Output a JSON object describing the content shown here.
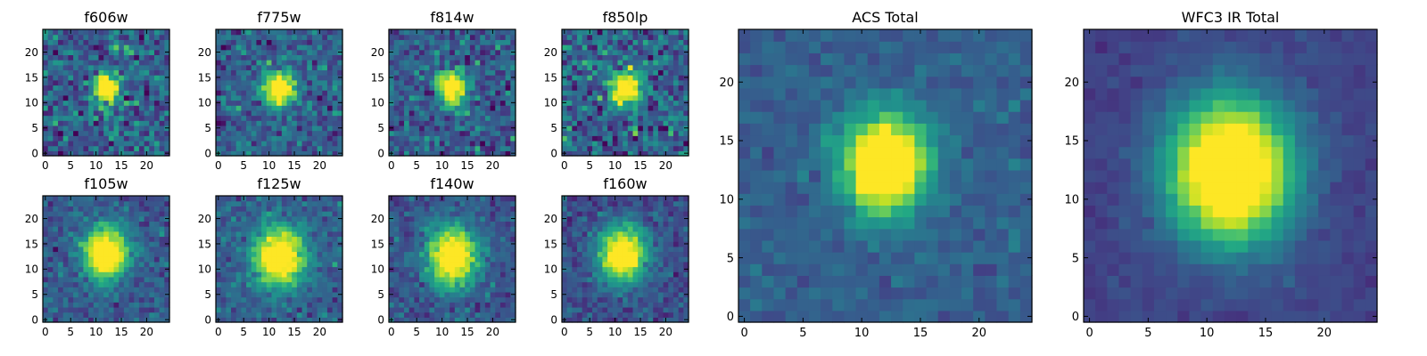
{
  "chart_data": [
    {
      "type": "heatmap",
      "title": "f606w",
      "colormap": "viridis",
      "xlim": [
        0,
        24
      ],
      "ylim": [
        0,
        24
      ],
      "x_ticks": [
        0,
        5,
        10,
        15,
        20
      ],
      "y_ticks": [
        0,
        5,
        10,
        15,
        20
      ],
      "source": {
        "center": [
          12,
          13
        ],
        "sigma": [
          1.7,
          2.1
        ],
        "peak": 1.0
      },
      "noise": 0.38,
      "background": 0.3,
      "seed": 11
    },
    {
      "type": "heatmap",
      "title": "f775w",
      "colormap": "viridis",
      "xlim": [
        0,
        24
      ],
      "ylim": [
        0,
        24
      ],
      "x_ticks": [
        0,
        5,
        10,
        15,
        20
      ],
      "y_ticks": [
        0,
        5,
        10,
        15,
        20
      ],
      "source": {
        "center": [
          12,
          13
        ],
        "sigma": [
          2.0,
          2.3
        ],
        "peak": 1.0
      },
      "noise": 0.32,
      "background": 0.3,
      "seed": 23
    },
    {
      "type": "heatmap",
      "title": "f814w",
      "colormap": "viridis",
      "xlim": [
        0,
        24
      ],
      "ylim": [
        0,
        24
      ],
      "x_ticks": [
        0,
        5,
        10,
        15,
        20
      ],
      "y_ticks": [
        0,
        5,
        10,
        15,
        20
      ],
      "source": {
        "center": [
          12,
          13
        ],
        "sigma": [
          1.9,
          2.3
        ],
        "peak": 1.0
      },
      "noise": 0.34,
      "background": 0.3,
      "seed": 37
    },
    {
      "type": "heatmap",
      "title": "f850lp",
      "colormap": "viridis",
      "xlim": [
        0,
        24
      ],
      "ylim": [
        0,
        24
      ],
      "x_ticks": [
        0,
        5,
        10,
        15,
        20
      ],
      "y_ticks": [
        0,
        5,
        10,
        15,
        20
      ],
      "source": {
        "center": [
          12,
          13
        ],
        "sigma": [
          2.0,
          2.4
        ],
        "peak": 1.0
      },
      "noise": 0.42,
      "background": 0.32,
      "seed": 41
    },
    {
      "type": "heatmap",
      "title": "f105w",
      "colormap": "viridis",
      "xlim": [
        0,
        24
      ],
      "ylim": [
        0,
        24
      ],
      "x_ticks": [
        0,
        5,
        10,
        15,
        20
      ],
      "y_ticks": [
        0,
        5,
        10,
        15,
        20
      ],
      "source": {
        "center": [
          12,
          13
        ],
        "sigma": [
          3.0,
          3.6
        ],
        "peak": 1.0
      },
      "noise": 0.22,
      "background": 0.28,
      "seed": 53
    },
    {
      "type": "heatmap",
      "title": "f125w",
      "colormap": "viridis",
      "xlim": [
        0,
        24
      ],
      "ylim": [
        0,
        24
      ],
      "x_ticks": [
        0,
        5,
        10,
        15,
        20
      ],
      "y_ticks": [
        0,
        5,
        10,
        15,
        20
      ],
      "source": {
        "center": [
          12,
          12.5
        ],
        "sigma": [
          3.4,
          4.0
        ],
        "peak": 1.0
      },
      "noise": 0.22,
      "background": 0.3,
      "seed": 67
    },
    {
      "type": "heatmap",
      "title": "f140w",
      "colormap": "viridis",
      "xlim": [
        0,
        24
      ],
      "ylim": [
        0,
        24
      ],
      "x_ticks": [
        0,
        5,
        10,
        15,
        20
      ],
      "y_ticks": [
        0,
        5,
        10,
        15,
        20
      ],
      "source": {
        "center": [
          12,
          12.5
        ],
        "sigma": [
          3.4,
          4.0
        ],
        "peak": 1.0
      },
      "noise": 0.22,
      "background": 0.26,
      "seed": 79
    },
    {
      "type": "heatmap",
      "title": "f160w",
      "colormap": "viridis",
      "xlim": [
        0,
        24
      ],
      "ylim": [
        0,
        24
      ],
      "x_ticks": [
        0,
        5,
        10,
        15,
        20
      ],
      "y_ticks": [
        0,
        5,
        10,
        15,
        20
      ],
      "source": {
        "center": [
          11.5,
          13
        ],
        "sigma": [
          3.2,
          3.8
        ],
        "peak": 1.0
      },
      "noise": 0.22,
      "background": 0.24,
      "seed": 83
    },
    {
      "type": "heatmap",
      "title": "ACS Total",
      "colormap": "viridis",
      "xlim": [
        0,
        24
      ],
      "ylim": [
        0,
        24
      ],
      "x_ticks": [
        0,
        5,
        10,
        15,
        20
      ],
      "y_ticks": [
        0,
        5,
        10,
        15,
        20
      ],
      "source": {
        "center": [
          12,
          13
        ],
        "sigma": [
          2.4,
          2.8
        ],
        "peak": 1.15
      },
      "noise": 0.14,
      "background": 0.3,
      "seed": 97
    },
    {
      "type": "heatmap",
      "title": "WFC3 IR Total",
      "colormap": "viridis",
      "xlim": [
        0,
        24
      ],
      "ylim": [
        0,
        24
      ],
      "x_ticks": [
        0,
        5,
        10,
        15,
        20
      ],
      "y_ticks": [
        0,
        5,
        10,
        15,
        20
      ],
      "source": {
        "center": [
          12,
          12.5
        ],
        "sigma": [
          3.6,
          4.2
        ],
        "peak": 1.2
      },
      "noise": 0.08,
      "background": 0.2,
      "seed": 101
    }
  ]
}
